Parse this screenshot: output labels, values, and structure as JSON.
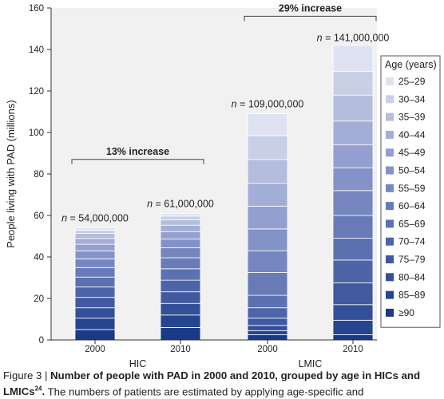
{
  "chart_data": {
    "type": "bar",
    "stacked": true,
    "ylabel": "People living with PAD (millions)",
    "ylim": [
      0,
      160
    ],
    "yticks": [
      0,
      20,
      40,
      60,
      80,
      100,
      120,
      140,
      160
    ],
    "grid": false,
    "groups": [
      {
        "label": "HIC",
        "years": [
          "2000",
          "2010"
        ]
      },
      {
        "label": "LMIC",
        "years": [
          "2000",
          "2010"
        ]
      }
    ],
    "bars": [
      {
        "group": "HIC",
        "year": "2000",
        "total": 54,
        "total_label": "n = 54,000,000",
        "segments": [
          1.1,
          1.6,
          2.4,
          2.8,
          3.2,
          3.8,
          4.2,
          4.6,
          4.8,
          5.0,
          5.0,
          5.0,
          5.5,
          5.0
        ]
      },
      {
        "group": "HIC",
        "year": "2010",
        "total": 61,
        "total_label": "n = 61,000,000",
        "segments": [
          1.3,
          1.8,
          2.6,
          3.1,
          3.6,
          4.2,
          4.8,
          5.3,
          5.5,
          5.6,
          5.6,
          5.6,
          6.0,
          6.0
        ]
      },
      {
        "group": "LMIC",
        "year": "2000",
        "total": 109,
        "total_label": "n = 109,000,000",
        "segments": [
          10.5,
          11.5,
          11.5,
          11.0,
          11.0,
          10.5,
          10.5,
          11.0,
          6.0,
          5.0,
          3.5,
          2.5,
          2.0,
          2.5
        ]
      },
      {
        "group": "LMIC",
        "year": "2010",
        "total": 141,
        "total_label": "n = 141,000,000",
        "segments": [
          12.5,
          11.5,
          12.5,
          11.5,
          11.0,
          11.0,
          12.0,
          11.0,
          10.5,
          11.0,
          10.5,
          7.5,
          7.0,
          2.5
        ]
      }
    ],
    "annotations": [
      {
        "text": "13% increase",
        "group": "HIC",
        "y": 87
      },
      {
        "text": "29% increase",
        "group": "LMIC",
        "y": 156
      }
    ],
    "legend": {
      "title": "Age (years)",
      "placement": "right",
      "entries": [
        "25–29",
        "30–34",
        "35–39",
        "40–44",
        "45–49",
        "50–54",
        "55–59",
        "60–64",
        "65–69",
        "70–74",
        "75–79",
        "80–84",
        "85–89",
        "≥90"
      ]
    },
    "colors": [
      "#dfe3f1",
      "#c9cfe6",
      "#b5bddd",
      "#a3aed6",
      "#93a0cf",
      "#8493c7",
      "#7687bf",
      "#687bb7",
      "#5c71b0",
      "#4d65a8",
      "#40599f",
      "#334f97",
      "#27458f",
      "#1a3a86"
    ]
  },
  "caption": {
    "lead": "Figure 3 | ",
    "bold": "Number of people with PAD in 2000 and 2010, grouped by age in HICs and LMICs",
    "ref": "24",
    "bold_end": ".",
    "text": " The numbers of patients are estimated by applying age-specific and"
  }
}
